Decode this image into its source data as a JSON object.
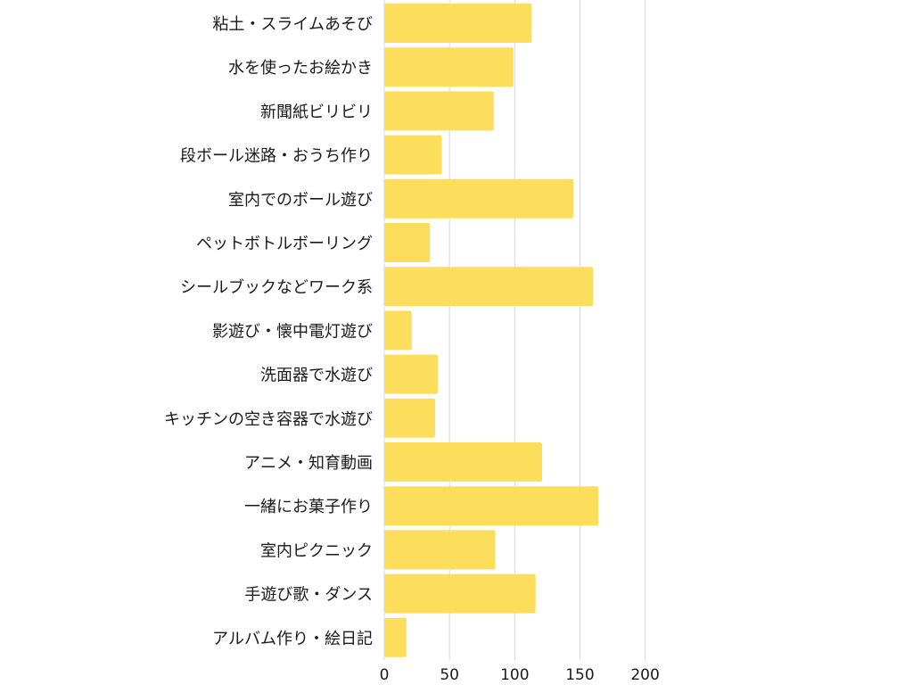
{
  "chart_data": {
    "type": "bar",
    "orientation": "horizontal",
    "categories": [
      "粘土・スライムあそび",
      "水を使ったお絵かき",
      "新聞紙ビリビリ",
      "段ボール迷路・おうち作り",
      "室内でのボール遊び",
      "ペットボトルボーリング",
      "シールブックなどワーク系",
      "影遊び・懐中電灯遊び",
      "洗面器で水遊び",
      "キッチンの空き容器で水遊び",
      "アニメ・知育動画",
      "一緒にお菓子作り",
      "室内ピクニック",
      "手遊び歌・ダンス",
      "アルバム作り・絵日記"
    ],
    "values": [
      113,
      99,
      84,
      44,
      145,
      35,
      160,
      21,
      41,
      39,
      121,
      164,
      85,
      116,
      17
    ],
    "xlim": [
      0,
      200
    ],
    "xticks": [
      "0",
      "50",
      "100",
      "150",
      "200"
    ],
    "grid": true,
    "legend": "none",
    "colors": {
      "bar": "#fddd5c",
      "grid": "#d9d9d9",
      "text": "#1a1a1a"
    }
  }
}
